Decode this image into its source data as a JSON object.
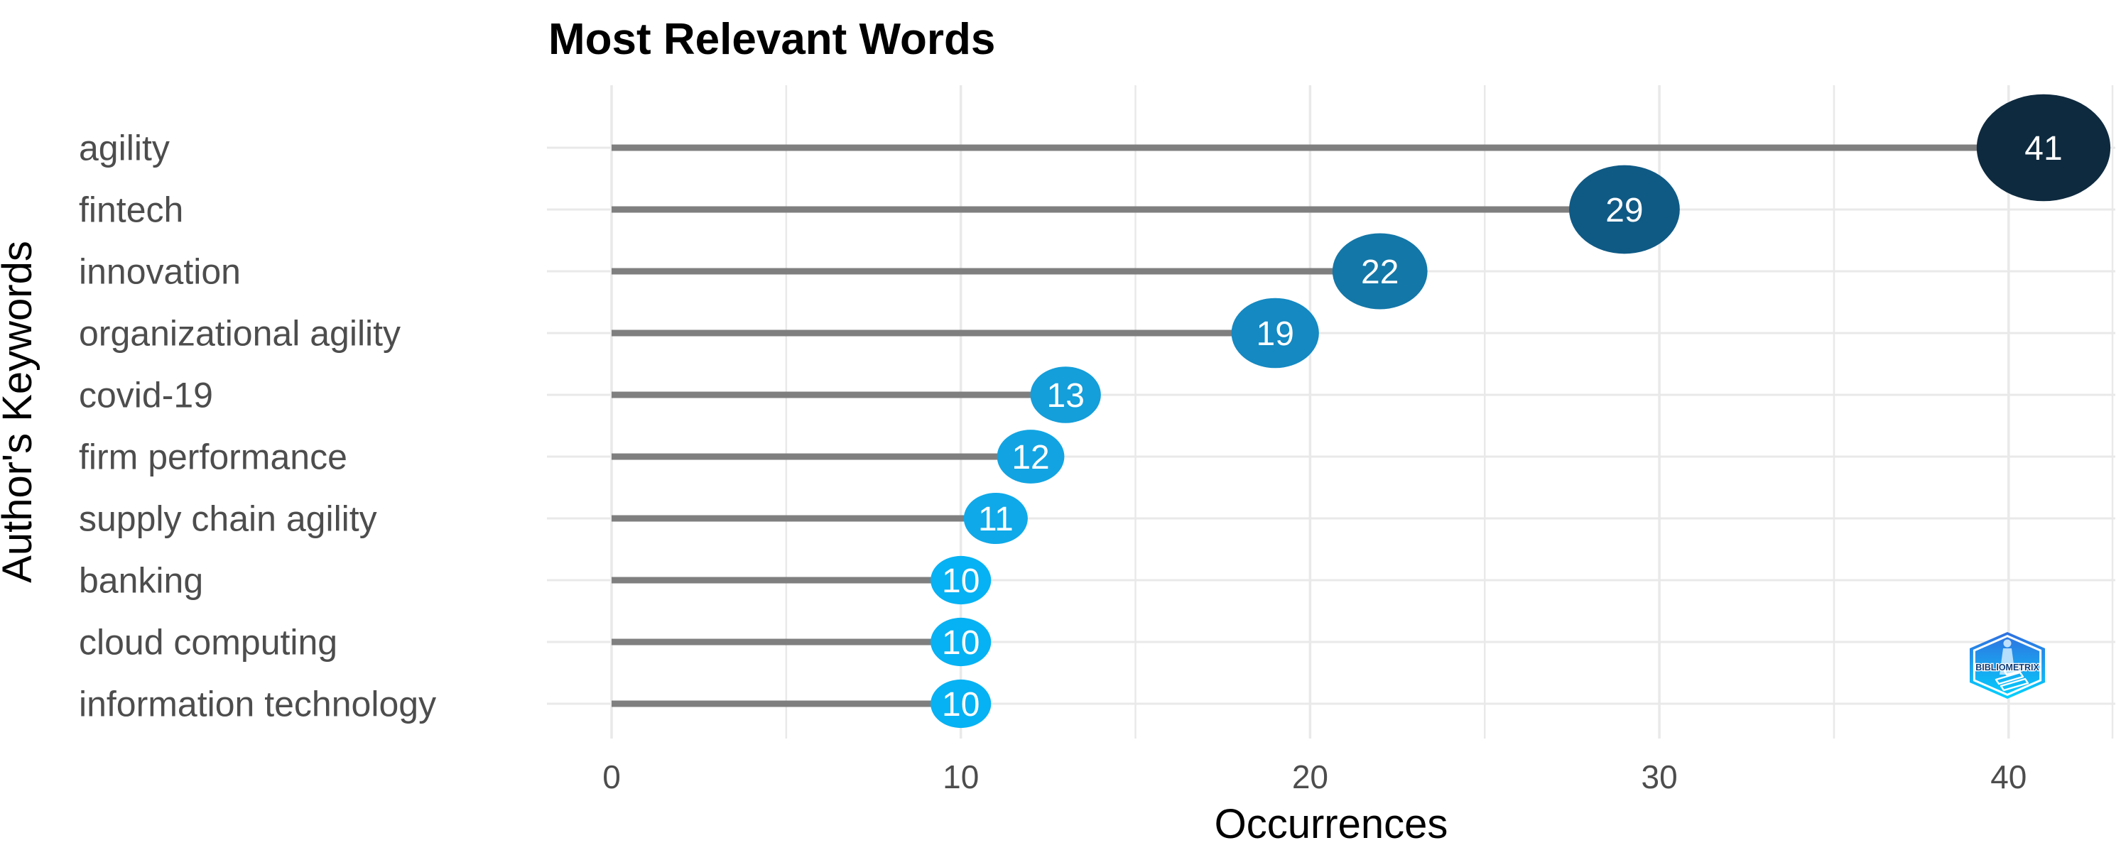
{
  "page": {
    "background": "#ffffff"
  },
  "chart_data": {
    "type": "lollipop",
    "title": "Most Relevant Words",
    "xlabel": "Occurrences",
    "ylabel": "Author's Keywords",
    "categories": [
      "agility",
      "fintech",
      "innovation",
      "organizational agility",
      "covid-19",
      "firm performance",
      "supply chain agility",
      "banking",
      "cloud computing",
      "information technology"
    ],
    "values": [
      41,
      29,
      22,
      19,
      13,
      12,
      11,
      10,
      10,
      10
    ],
    "point_colors": [
      "#0E2A3F",
      "#0F5A85",
      "#1377A8",
      "#1489C2",
      "#149EDA",
      "#12A4E2",
      "#0FA9E9",
      "#06B2F3",
      "#06B2F3",
      "#06B2F3"
    ],
    "point_label_color": "#ffffff",
    "stem_color": "#7F7F7F",
    "grid_color": "#E9E9E9",
    "axis_text_color": "#4D4D4D",
    "x_ticks": [
      0,
      10,
      20,
      30,
      40
    ],
    "x_tick_labels": [
      "0",
      "10",
      "20",
      "30",
      "40"
    ],
    "x_minor_ticks": [
      5,
      15,
      25,
      35
    ],
    "xlim": [
      0,
      41
    ],
    "grid": true,
    "legend": false
  },
  "branding": {
    "logo": "bibliometrix-logo",
    "logo_text": "BIBLIOMETRIX",
    "logo_colors": {
      "top": "#2F6FE0",
      "mid": "#1E9BEC",
      "bottom": "#00D2FF",
      "text": "#0D3B78"
    }
  }
}
